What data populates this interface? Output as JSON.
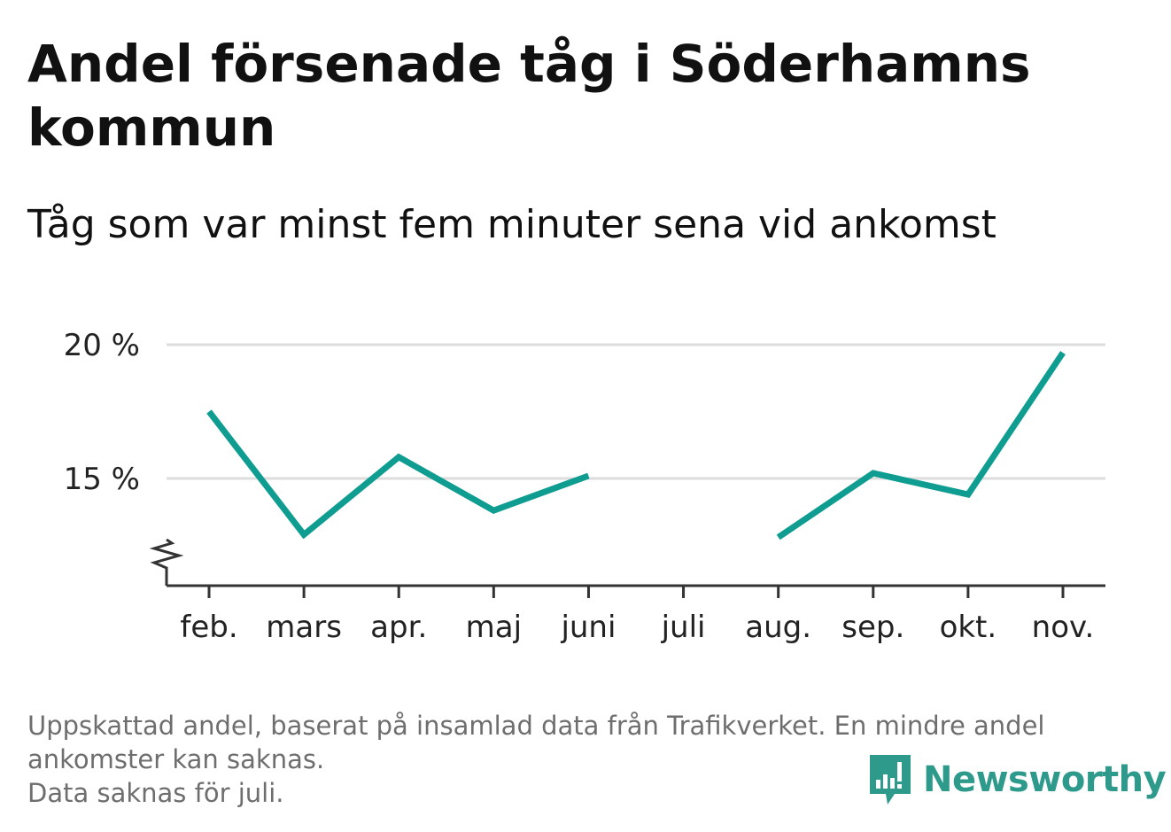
{
  "title": "Andel försenade tåg i Söderhamns kommun",
  "subtitle": "Tåg som var minst fem minuter sena vid ankomst",
  "footnote": {
    "line1": "Uppskattad andel, baserat på insamlad data från Trafikverket. En mindre andel",
    "line2": "ankomster kan saknas.",
    "line3": "Data saknas för juli."
  },
  "logo": {
    "text": "Newsworthy",
    "icon": "newsworthy-logo-icon"
  },
  "colors": {
    "line": "#0f9d92",
    "grid": "#dddddd",
    "axis": "#333333",
    "logo": "#2e9a8c"
  },
  "chart_data": {
    "type": "line",
    "categories": [
      "feb.",
      "mars",
      "apr.",
      "maj",
      "juni",
      "juli",
      "aug.",
      "sep.",
      "okt.",
      "nov."
    ],
    "series": [
      {
        "values": [
          17.5,
          12.9,
          15.8,
          13.8,
          15.1,
          null,
          12.8,
          15.2,
          14.4,
          19.7
        ]
      }
    ],
    "ylim": [
      11,
      20
    ],
    "yticks": [
      15,
      20
    ],
    "ytick_labels": [
      "15 %",
      "20 %"
    ],
    "axis_break": true,
    "grid": true,
    "xlabel": "",
    "ylabel": ""
  }
}
